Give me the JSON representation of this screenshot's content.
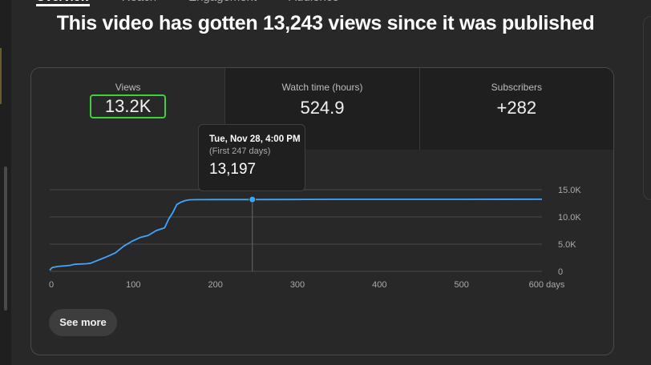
{
  "tabs": [
    {
      "label": "Overview",
      "active": true
    },
    {
      "label": "Reach",
      "active": false
    },
    {
      "label": "Engagement",
      "active": false
    },
    {
      "label": "Audience",
      "active": false
    }
  ],
  "headline": "This video has gotten 13,243 views since it was published",
  "metrics": [
    {
      "label": "Views",
      "value": "13.2K",
      "selected": true
    },
    {
      "label": "Watch time (hours)",
      "value": "524.9",
      "selected": false
    },
    {
      "label": "Subscribers",
      "value": "+282",
      "selected": false
    }
  ],
  "tooltip": {
    "date": "Tue, Nov 28, 4:00 PM",
    "subtitle": "(First 247 days)",
    "value": "13,197"
  },
  "see_more_label": "See more",
  "colors": {
    "line": "#3ea6ff",
    "selected_border": "#3ad33a",
    "background": "#282828"
  },
  "chart_data": {
    "type": "line",
    "xlabel": "",
    "ylabel": "",
    "x_ticks": [
      "0",
      "100",
      "200",
      "300",
      "400",
      "500",
      "600 days"
    ],
    "y_ticks": [
      "15.0K",
      "10.0K",
      "5.0K",
      "0"
    ],
    "xlim": [
      0,
      600
    ],
    "ylim": [
      0,
      15000
    ],
    "x_tick_values": [
      0,
      100,
      200,
      300,
      400,
      500,
      600
    ],
    "y_tick_values": [
      15000,
      10000,
      5000,
      0
    ],
    "grid": true,
    "highlight": {
      "x": 247,
      "y": 13197
    },
    "series": [
      {
        "x": [
          0,
          3,
          10,
          25,
          30,
          45,
          50,
          60,
          70,
          80,
          90,
          100,
          110,
          120,
          130,
          140,
          145,
          150,
          155,
          160,
          165,
          170,
          180,
          200,
          247,
          300,
          360,
          400,
          500,
          600
        ],
        "y": [
          200,
          700,
          900,
          1100,
          1300,
          1400,
          1500,
          2100,
          2700,
          3400,
          4600,
          5500,
          6200,
          6600,
          7500,
          8000,
          9600,
          10800,
          12300,
          12700,
          13000,
          13150,
          13180,
          13190,
          13197,
          13210,
          13230,
          13232,
          13238,
          13243
        ]
      }
    ]
  }
}
